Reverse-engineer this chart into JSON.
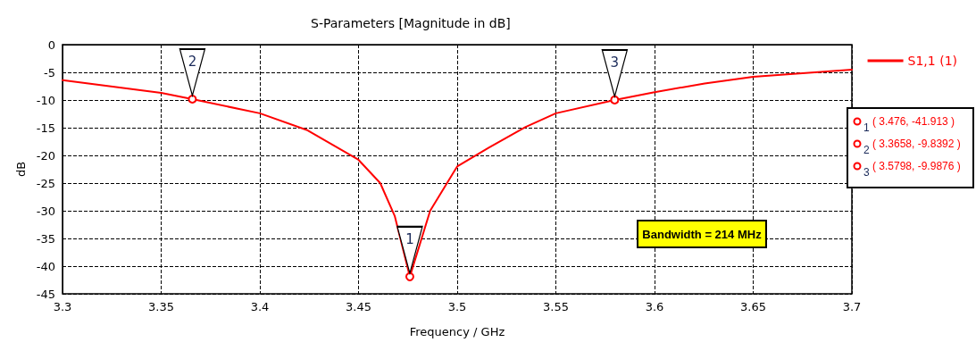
{
  "chart_data": {
    "type": "line",
    "title": "S-Parameters [Magnitude in dB]",
    "xlabel": "Frequency / GHz",
    "ylabel": "dB",
    "series": [
      {
        "name": "S1,1 (1)",
        "color": "#ff0000",
        "x": [
          3.3,
          3.35,
          3.3658,
          3.4,
          3.4237,
          3.45,
          3.461,
          3.4684,
          3.476,
          3.4863,
          3.5,
          3.516,
          3.5345,
          3.55,
          3.5798,
          3.6,
          3.6254,
          3.65,
          3.7
        ],
        "values": [
          -6.4,
          -8.7,
          -9.8392,
          -12.4,
          -15.4,
          -20.8,
          -25,
          -31,
          -41.913,
          -30,
          -22,
          -18.6,
          -14.9,
          -12.4,
          -9.9876,
          -8.6,
          -7,
          -5.8,
          -4.5
        ]
      }
    ],
    "xlim": [
      3.3,
      3.7
    ],
    "ylim": [
      -45,
      0
    ],
    "xticks": [
      3.3,
      3.35,
      3.4,
      3.45,
      3.5,
      3.55,
      3.6,
      3.65,
      3.7
    ],
    "yticks": [
      -45,
      -40,
      -35,
      -30,
      -25,
      -20,
      -15,
      -10,
      -5,
      0
    ],
    "grid": true,
    "legend": "top right",
    "marker": "none",
    "line_style": "solid",
    "annotations": [
      {
        "text": "1",
        "x": 3.476,
        "y": -41.913
      },
      {
        "text": "2",
        "x": 3.3658,
        "y": -9.8392
      },
      {
        "text": "3",
        "x": 3.5798,
        "y": -9.9876
      },
      "( 3.476, -41.913 )",
      "( 3.3658, -9.8392 )",
      "( 3.5798, -9.9876 )",
      "Bandwidth = 214 MHz"
    ]
  }
}
